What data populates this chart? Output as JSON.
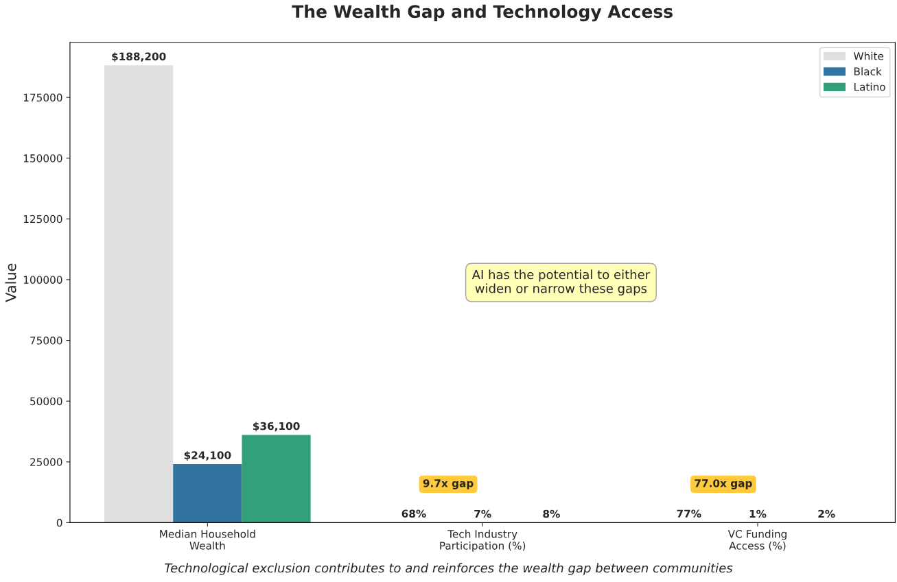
{
  "chart_data": {
    "type": "bar",
    "title": "The Wealth Gap and Technology Access",
    "ylabel": "Value",
    "categories": [
      "Median Household\nWealth",
      "Tech Industry\nParticipation (%)",
      "VC Funding\nAccess (%)"
    ],
    "series": [
      {
        "name": "White",
        "color": "#e0e0e0",
        "values": [
          188200,
          68,
          77
        ],
        "value_labels": [
          "$188,200",
          "68%",
          "77%"
        ]
      },
      {
        "name": "Black",
        "color": "#3274a1",
        "values": [
          24100,
          7,
          1
        ],
        "value_labels": [
          "$24,100",
          "7%",
          "1%"
        ]
      },
      {
        "name": "Latino",
        "color": "#32a07a",
        "values": [
          36100,
          8,
          2
        ],
        "value_labels": [
          "$36,100",
          "8%",
          "2%"
        ]
      }
    ],
    "ylim": [
      0,
      197600
    ],
    "yticks": [
      0,
      25000,
      50000,
      75000,
      100000,
      125000,
      150000,
      175000
    ],
    "legend": "top right",
    "grid": false,
    "annotations": [
      "9.7x gap",
      "77.0x gap",
      "AI has the potential to either\nwiden or narrow these gaps",
      "Technological exclusion contributes to and reinforces the wealth gap between communities"
    ]
  }
}
